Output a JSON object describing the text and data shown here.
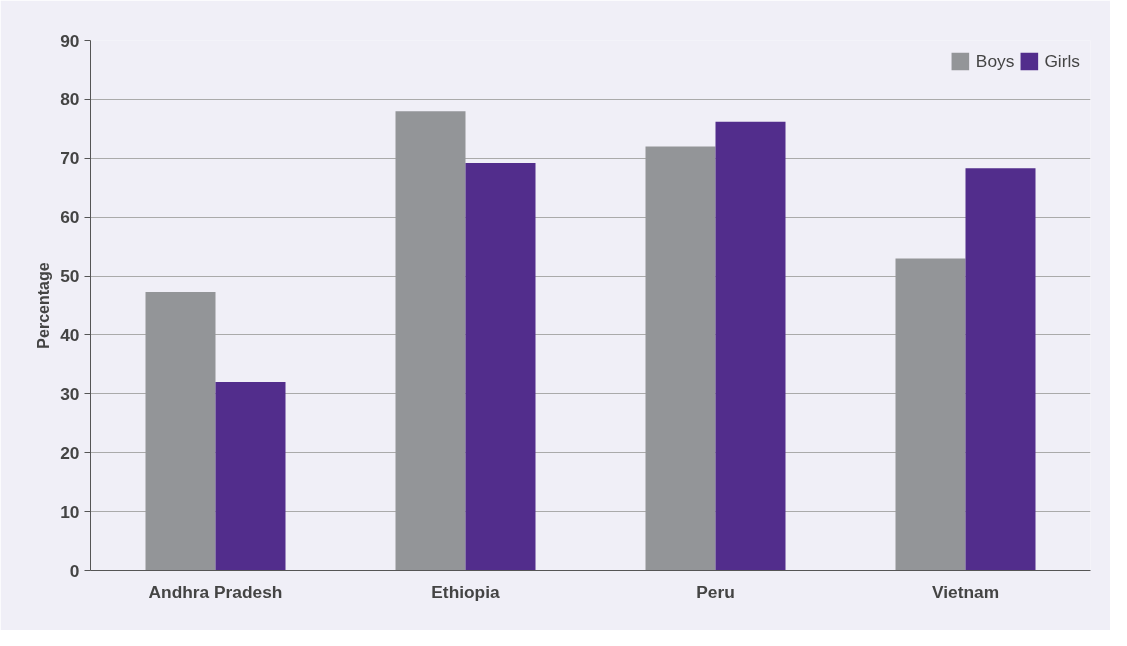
{
  "chart_data": {
    "type": "bar",
    "ylabel": "Percentage",
    "categories": [
      "Andhra Pradesh",
      "Ethiopia",
      "Peru",
      "Vietnam"
    ],
    "series": [
      {
        "name": "Boys",
        "color": "#939598",
        "values": [
          47.3,
          78,
          72,
          53
        ]
      },
      {
        "name": "Girls",
        "color": "#522d8c",
        "values": [
          32,
          69.2,
          76.2,
          68.3
        ]
      }
    ],
    "ylim": [
      0,
      90
    ],
    "yticks": [
      0,
      10,
      20,
      30,
      40,
      50,
      60,
      70,
      80,
      90
    ],
    "grid": "y",
    "legend": "top right"
  }
}
